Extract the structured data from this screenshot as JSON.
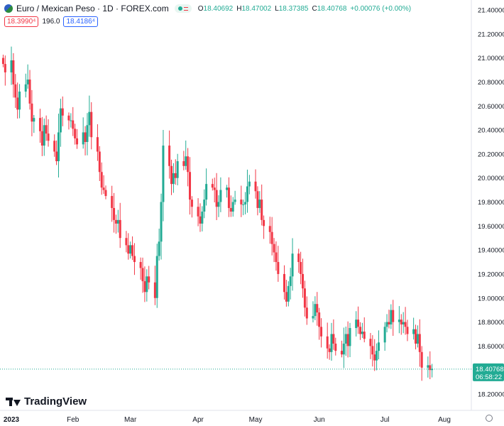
{
  "header": {
    "symbol": "Euro / Mexican Peso · 1D · FOREX.com",
    "ohlc": [
      {
        "k": "O",
        "v": "18.40692"
      },
      {
        "k": "H",
        "v": "18.47002"
      },
      {
        "k": "L",
        "v": "18.37385"
      },
      {
        "k": "C",
        "v": "18.40768"
      },
      {
        "k": "",
        "v": "+0.00076 (+0.00%)"
      }
    ],
    "bid": "18.3990⁴",
    "spread": "196.0",
    "ask": "18.4186⁴"
  },
  "branding": {
    "logo_text": "TradingView"
  },
  "icons": {
    "flag": "currency-flag-icon",
    "settings": "gear-icon"
  },
  "colors": {
    "up": "#22ab94",
    "down": "#f23645",
    "last_price": "#22ab94"
  },
  "price_label": {
    "price": "18.40768",
    "countdown": "06:58:22"
  },
  "chart_data": {
    "type": "candlestick",
    "title": "Euro / Mexican Peso · 1D · FOREX.com",
    "x_tick_labels": [
      {
        "label": "2023",
        "date": "2023-01-02"
      },
      {
        "label": "Feb",
        "date": "2023-02-01"
      },
      {
        "label": "Mar",
        "date": "2023-03-01"
      },
      {
        "label": "Apr",
        "date": "2023-04-03"
      },
      {
        "label": "May",
        "date": "2023-05-01"
      },
      {
        "label": "Jun",
        "date": "2023-06-01"
      },
      {
        "label": "Jul",
        "date": "2023-07-03"
      },
      {
        "label": "Aug",
        "date": "2023-08-01"
      }
    ],
    "y_tick_labels": [
      "21.40000",
      "21.20000",
      "21.00000",
      "20.80000",
      "20.60000",
      "20.40000",
      "20.20000",
      "20.00000",
      "19.80000",
      "19.60000",
      "19.40000",
      "19.20000",
      "19.00000",
      "18.80000",
      "18.60000",
      "18.40000",
      "18.20000"
    ],
    "ylim": [
      18.15,
      21.48
    ],
    "grid": false,
    "last_price": 18.40768,
    "closes": [
      {
        "date": "2022-12-29",
        "close": 20.95
      },
      {
        "date": "2022-12-30",
        "close": 20.88
      },
      {
        "date": "2023-01-02",
        "close": 20.98
      },
      {
        "date": "2023-01-03",
        "close": 20.78
      },
      {
        "date": "2023-01-04",
        "close": 20.67
      },
      {
        "date": "2023-01-05",
        "close": 20.57
      },
      {
        "date": "2023-01-06",
        "close": 20.72
      },
      {
        "date": "2023-01-09",
        "close": 20.78
      },
      {
        "date": "2023-01-10",
        "close": 20.82
      },
      {
        "date": "2023-01-11",
        "close": 20.62
      },
      {
        "date": "2023-01-12",
        "close": 20.47
      },
      {
        "date": "2023-01-13",
        "close": 20.5
      },
      {
        "date": "2023-01-16",
        "close": 20.39
      },
      {
        "date": "2023-01-17",
        "close": 20.27
      },
      {
        "date": "2023-01-18",
        "close": 20.44
      },
      {
        "date": "2023-01-19",
        "close": 20.37
      },
      {
        "date": "2023-01-20",
        "close": 20.31
      },
      {
        "date": "2023-01-23",
        "close": 20.22
      },
      {
        "date": "2023-01-24",
        "close": 20.14
      },
      {
        "date": "2023-01-25",
        "close": 20.38
      },
      {
        "date": "2023-01-26",
        "close": 20.58
      },
      {
        "date": "2023-01-27",
        "close": 20.52
      },
      {
        "date": "2023-01-30",
        "close": 20.48
      },
      {
        "date": "2023-01-31",
        "close": 20.48
      },
      {
        "date": "2023-02-01",
        "close": 20.41
      },
      {
        "date": "2023-02-02",
        "close": 20.33
      },
      {
        "date": "2023-02-03",
        "close": 20.28
      },
      {
        "date": "2023-02-06",
        "close": 20.38
      },
      {
        "date": "2023-02-07",
        "close": 20.3
      },
      {
        "date": "2023-02-08",
        "close": 20.44
      },
      {
        "date": "2023-02-09",
        "close": 20.55
      },
      {
        "date": "2023-02-10",
        "close": 20.34
      },
      {
        "date": "2023-02-13",
        "close": 20.22
      },
      {
        "date": "2023-02-14",
        "close": 20.05
      },
      {
        "date": "2023-02-15",
        "close": 19.92
      },
      {
        "date": "2023-02-16",
        "close": 19.9
      },
      {
        "date": "2023-02-17",
        "close": 19.85
      },
      {
        "date": "2023-02-20",
        "close": 19.75
      },
      {
        "date": "2023-02-21",
        "close": 19.65
      },
      {
        "date": "2023-02-22",
        "close": 19.62
      },
      {
        "date": "2023-02-23",
        "close": 19.65
      },
      {
        "date": "2023-02-24",
        "close": 19.5
      },
      {
        "date": "2023-02-27",
        "close": 19.44
      },
      {
        "date": "2023-02-28",
        "close": 19.37
      },
      {
        "date": "2023-03-01",
        "close": 19.44
      },
      {
        "date": "2023-03-02",
        "close": 19.35
      },
      {
        "date": "2023-03-03",
        "close": 19.3
      },
      {
        "date": "2023-03-06",
        "close": 19.25
      },
      {
        "date": "2023-03-07",
        "close": 19.14
      },
      {
        "date": "2023-03-08",
        "close": 19.05
      },
      {
        "date": "2023-03-09",
        "close": 19.18
      },
      {
        "date": "2023-03-10",
        "close": 19.13
      },
      {
        "date": "2023-03-13",
        "close": 19.0
      },
      {
        "date": "2023-03-14",
        "close": 19.35
      },
      {
        "date": "2023-03-15",
        "close": 19.47
      },
      {
        "date": "2023-03-16",
        "close": 19.8
      },
      {
        "date": "2023-03-17",
        "close": 20.27
      },
      {
        "date": "2023-03-20",
        "close": 20.1
      },
      {
        "date": "2023-03-21",
        "close": 19.95
      },
      {
        "date": "2023-03-22",
        "close": 20.04
      },
      {
        "date": "2023-03-23",
        "close": 20.0
      },
      {
        "date": "2023-03-24",
        "close": 20.14
      },
      {
        "date": "2023-03-27",
        "close": 20.1
      },
      {
        "date": "2023-03-28",
        "close": 20.18
      },
      {
        "date": "2023-03-29",
        "close": 20.05
      },
      {
        "date": "2023-03-30",
        "close": 19.82
      },
      {
        "date": "2023-03-31",
        "close": 19.76
      },
      {
        "date": "2023-04-03",
        "close": 19.68
      },
      {
        "date": "2023-04-04",
        "close": 19.62
      },
      {
        "date": "2023-04-05",
        "close": 19.72
      },
      {
        "date": "2023-04-06",
        "close": 19.82
      },
      {
        "date": "2023-04-07",
        "close": 19.95
      },
      {
        "date": "2023-04-10",
        "close": 19.92
      },
      {
        "date": "2023-04-11",
        "close": 19.9
      },
      {
        "date": "2023-04-12",
        "close": 19.76
      },
      {
        "date": "2023-04-13",
        "close": 19.8
      },
      {
        "date": "2023-04-14",
        "close": 19.9
      },
      {
        "date": "2023-04-17",
        "close": 19.92
      },
      {
        "date": "2023-04-18",
        "close": 19.75
      },
      {
        "date": "2023-04-19",
        "close": 19.72
      },
      {
        "date": "2023-04-20",
        "close": 19.8
      },
      {
        "date": "2023-04-21",
        "close": 19.82
      },
      {
        "date": "2023-04-24",
        "close": 19.78
      },
      {
        "date": "2023-04-25",
        "close": 19.78
      },
      {
        "date": "2023-04-26",
        "close": 19.8
      },
      {
        "date": "2023-04-27",
        "close": 19.93
      },
      {
        "date": "2023-04-28",
        "close": 19.97
      },
      {
        "date": "2023-05-01",
        "close": 19.89
      },
      {
        "date": "2023-05-02",
        "close": 19.75
      },
      {
        "date": "2023-05-03",
        "close": 19.82
      },
      {
        "date": "2023-05-04",
        "close": 19.65
      },
      {
        "date": "2023-05-05",
        "close": 19.6
      },
      {
        "date": "2023-05-08",
        "close": 19.55
      },
      {
        "date": "2023-05-09",
        "close": 19.45
      },
      {
        "date": "2023-05-10",
        "close": 19.38
      },
      {
        "date": "2023-05-11",
        "close": 19.3
      },
      {
        "date": "2023-05-12",
        "close": 19.2
      },
      {
        "date": "2023-05-15",
        "close": 19.05
      },
      {
        "date": "2023-05-16",
        "close": 18.97
      },
      {
        "date": "2023-05-17",
        "close": 19.1
      },
      {
        "date": "2023-05-18",
        "close": 19.18
      },
      {
        "date": "2023-05-19",
        "close": 19.37
      },
      {
        "date": "2023-05-22",
        "close": 19.3
      },
      {
        "date": "2023-05-23",
        "close": 19.2
      },
      {
        "date": "2023-05-24",
        "close": 19.08
      },
      {
        "date": "2023-05-25",
        "close": 18.92
      },
      {
        "date": "2023-05-26",
        "close": 18.83
      },
      {
        "date": "2023-05-29",
        "close": 18.85
      },
      {
        "date": "2023-05-30",
        "close": 18.95
      },
      {
        "date": "2023-05-31",
        "close": 18.88
      },
      {
        "date": "2023-06-01",
        "close": 18.76
      },
      {
        "date": "2023-06-02",
        "close": 18.68
      },
      {
        "date": "2023-06-05",
        "close": 18.58
      },
      {
        "date": "2023-06-06",
        "close": 18.55
      },
      {
        "date": "2023-06-07",
        "close": 18.7
      },
      {
        "date": "2023-06-08",
        "close": 18.62
      },
      {
        "date": "2023-06-09",
        "close": 18.56
      },
      {
        "date": "2023-06-12",
        "close": 18.53
      },
      {
        "date": "2023-06-13",
        "close": 18.62
      },
      {
        "date": "2023-06-14",
        "close": 18.7
      },
      {
        "date": "2023-06-15",
        "close": 18.6
      },
      {
        "date": "2023-06-16",
        "close": 18.75
      },
      {
        "date": "2023-06-19",
        "close": 18.82
      },
      {
        "date": "2023-06-20",
        "close": 18.76
      },
      {
        "date": "2023-06-21",
        "close": 18.7
      },
      {
        "date": "2023-06-22",
        "close": 18.72
      },
      {
        "date": "2023-06-23",
        "close": 18.66
      },
      {
        "date": "2023-06-26",
        "close": 18.6
      },
      {
        "date": "2023-06-27",
        "close": 18.53
      },
      {
        "date": "2023-06-28",
        "close": 18.48
      },
      {
        "date": "2023-06-29",
        "close": 18.56
      },
      {
        "date": "2023-06-30",
        "close": 18.63
      },
      {
        "date": "2023-07-03",
        "close": 18.76
      },
      {
        "date": "2023-07-04",
        "close": 18.8
      },
      {
        "date": "2023-07-05",
        "close": 18.78
      },
      {
        "date": "2023-07-06",
        "close": 18.9
      },
      {
        "date": "2023-07-07",
        "close": 18.8
      },
      {
        "date": "2023-07-10",
        "close": 18.82
      },
      {
        "date": "2023-07-11",
        "close": 18.78
      },
      {
        "date": "2023-07-12",
        "close": 18.8
      },
      {
        "date": "2023-07-13",
        "close": 18.76
      },
      {
        "date": "2023-07-14",
        "close": 18.7
      },
      {
        "date": "2023-07-17",
        "close": 18.74
      },
      {
        "date": "2023-07-18",
        "close": 18.62
      },
      {
        "date": "2023-07-19",
        "close": 18.7
      },
      {
        "date": "2023-07-20",
        "close": 18.55
      },
      {
        "date": "2023-07-21",
        "close": 18.42
      },
      {
        "date": "2023-07-24",
        "close": 18.44
      },
      {
        "date": "2023-07-25",
        "close": 18.4
      },
      {
        "date": "2023-07-26",
        "close": 18.41
      }
    ]
  }
}
